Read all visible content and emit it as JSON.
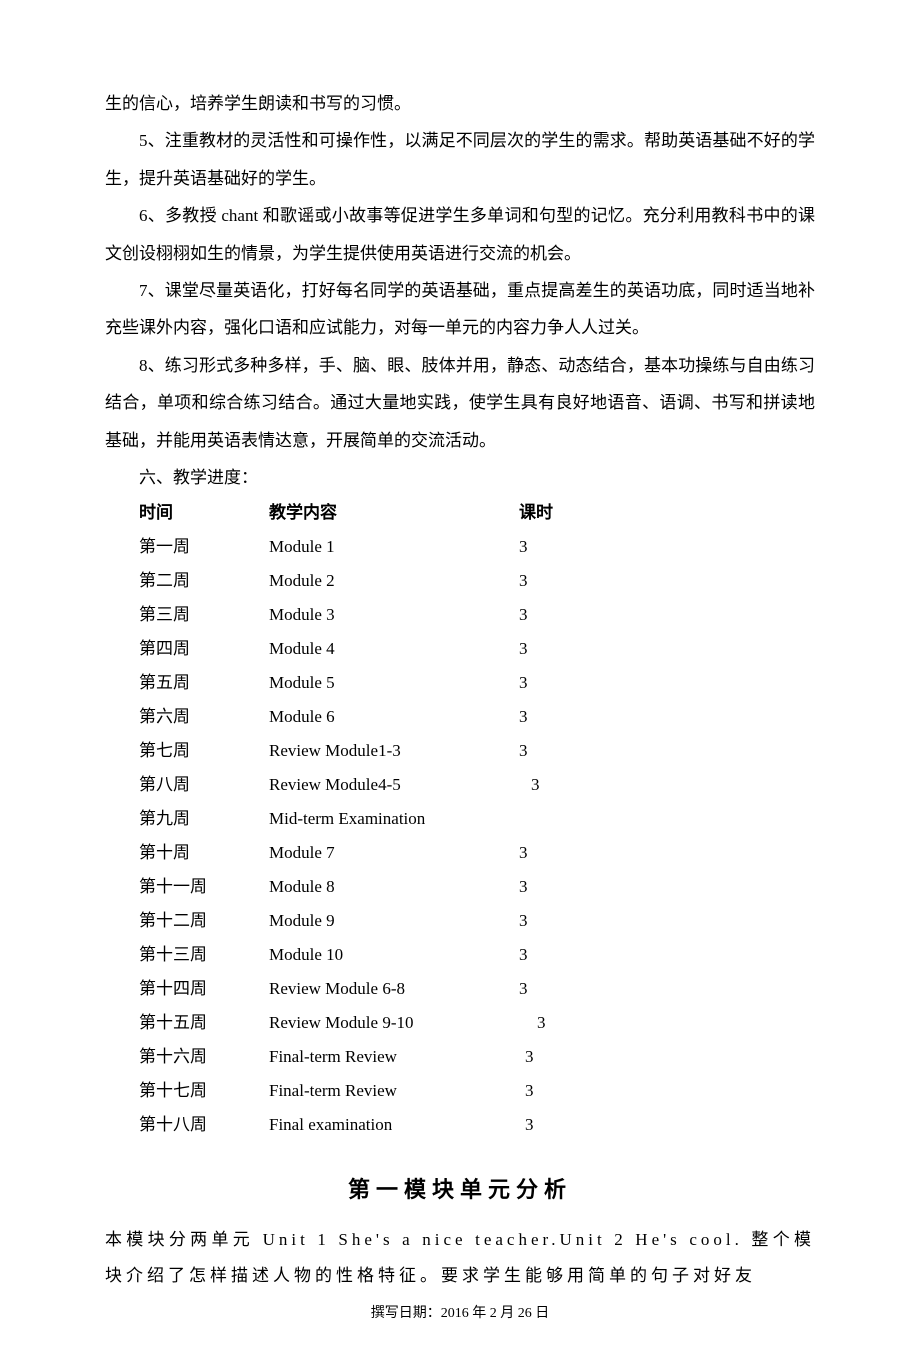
{
  "paragraphs": {
    "p4_tail": "生的信心，培养学生朗读和书写的习惯。",
    "p5": "5、注重教材的灵活性和可操作性，以满足不同层次的学生的需求。帮助英语基础不好的学生，提升英语基础好的学生。",
    "p6": "6、多教授 chant 和歌谣或小故事等促进学生多单词和句型的记忆。充分利用教科书中的课文创设栩栩如生的情景，为学生提供使用英语进行交流的机会。",
    "p7": "7、课堂尽量英语化，打好每名同学的英语基础，重点提高差生的英语功底，同时适当地补充些课外内容，强化口语和应试能力，对每一单元的内容力争人人过关。",
    "p8": "8、练习形式多种多样，手、脑、眼、肢体并用，静态、动态结合，基本功操练与自由练习结合，单项和综合练习结合。通过大量地实践，使学生具有良好地语音、语调、书写和拼读地基础，并能用英语表情达意，开展简单的交流活动。"
  },
  "section_title": "六、教学进度：",
  "schedule": {
    "headers": {
      "time": "时间",
      "content": "教学内容",
      "hours": "课时"
    },
    "rows": [
      {
        "time": "第一周",
        "content": "Module 1",
        "hours": "3",
        "offset": 0
      },
      {
        "time": "第二周",
        "content": "Module 2",
        "hours": "3",
        "offset": 0
      },
      {
        "time": "第三周",
        "content": "Module 3",
        "hours": "3",
        "offset": 0
      },
      {
        "time": "第四周",
        "content": "Module 4",
        "hours": "3",
        "offset": 0
      },
      {
        "time": "第五周",
        "content": "Module 5",
        "hours": "3",
        "offset": 0
      },
      {
        "time": "第六周",
        "content": "Module 6",
        "hours": "3",
        "offset": 0
      },
      {
        "time": "第七周",
        "content": "Review Module1-3",
        "hours": "3",
        "offset": 0
      },
      {
        "time": "第八周",
        "content": "Review Module4-5",
        "hours": "3",
        "offset": 12
      },
      {
        "time": "第九周",
        "content": "Mid-term Examination",
        "hours": "",
        "offset": 0
      },
      {
        "time": "第十周",
        "content": "Module 7",
        "hours": "3",
        "offset": 0
      },
      {
        "time": "第十一周",
        "content": "Module 8",
        "hours": "3",
        "offset": 0
      },
      {
        "time": "第十二周",
        "content": "Module 9",
        "hours": "3",
        "offset": 0
      },
      {
        "time": "第十三周",
        "content": "Module 10",
        "hours": "3",
        "offset": 0
      },
      {
        "time": "第十四周",
        "content": "Review Module 6-8",
        "hours": "3",
        "offset": -6
      },
      {
        "time": "第十五周",
        "content": "Review Module 9-10",
        "hours": "3",
        "offset": 18
      },
      {
        "time": "第十六周",
        "content": "Final-term Review",
        "hours": "3",
        "offset": 6
      },
      {
        "time": "第十七周",
        "content": "Final-term Review",
        "hours": "3",
        "offset": 6
      },
      {
        "time": "第十八周",
        "content": "Final examination",
        "hours": "3",
        "offset": 6
      }
    ]
  },
  "unit": {
    "title": "第一模块单元分析",
    "body": "本模块分两单元 Unit 1 She's a nice teacher.Unit 2 He's cool.  整个模块介绍了怎样描述人物的性格特征。要求学生能够用简单的句子对好友"
  },
  "footer": "撰写日期：2016 年 2 月 26 日"
}
